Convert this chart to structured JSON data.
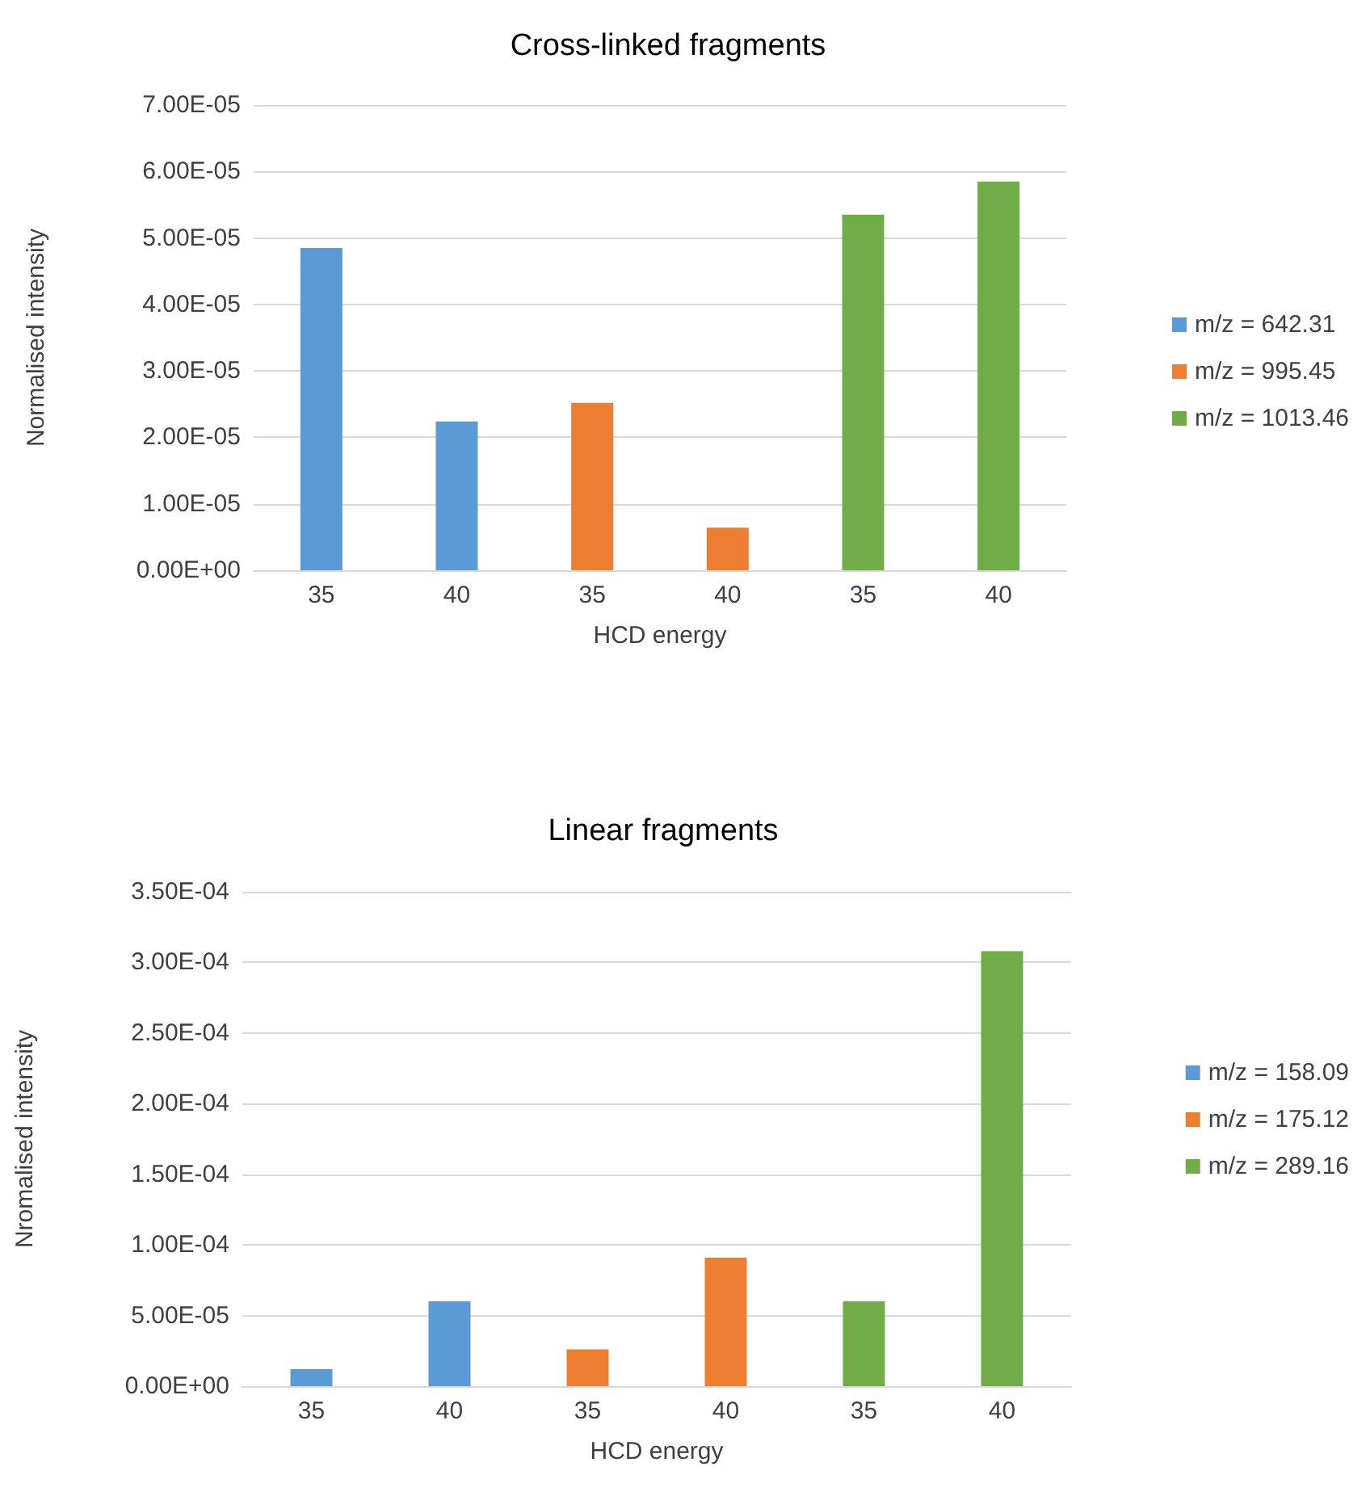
{
  "chart_data": [
    {
      "type": "bar",
      "title": "Cross-linked fragments",
      "xlabel": "HCD energy",
      "ylabel": "Normalised intensity",
      "categories": [
        "35",
        "40",
        "35",
        "40",
        "35",
        "40"
      ],
      "series": [
        {
          "name": "m/z = 642.31",
          "color": "#5b9bd5",
          "values": [
            4.85e-05,
            2.24e-05,
            null,
            null,
            null,
            null
          ]
        },
        {
          "name": "m/z = 995.45",
          "color": "#ed7d31",
          "values": [
            null,
            null,
            2.52e-05,
            6.4e-06,
            null,
            null
          ]
        },
        {
          "name": "m/z = 1013.46",
          "color": "#70ad47",
          "values": [
            null,
            null,
            null,
            null,
            5.35e-05,
            5.85e-05
          ]
        }
      ],
      "ylim": [
        0,
        7e-05
      ],
      "yticks": [
        {
          "value": 0,
          "label": "0.00E+00"
        },
        {
          "value": 1e-05,
          "label": "1.00E-05"
        },
        {
          "value": 2e-05,
          "label": "2.00E-05"
        },
        {
          "value": 3e-05,
          "label": "3.00E-05"
        },
        {
          "value": 4e-05,
          "label": "4.00E-05"
        },
        {
          "value": 5e-05,
          "label": "5.00E-05"
        },
        {
          "value": 6e-05,
          "label": "6.00E-05"
        },
        {
          "value": 7e-05,
          "label": "7.00E-05"
        }
      ],
      "grid": "y",
      "legend": "right"
    },
    {
      "type": "bar",
      "title": "Linear fragments",
      "xlabel": "HCD energy",
      "ylabel": "Nromalised intensity",
      "categories": [
        "35",
        "40",
        "35",
        "40",
        "35",
        "40"
      ],
      "series": [
        {
          "name": "m/z = 158.09",
          "color": "#5b9bd5",
          "values": [
            1.2e-05,
            6e-05,
            null,
            null,
            null,
            null
          ]
        },
        {
          "name": "m/z = 175.12",
          "color": "#ed7d31",
          "values": [
            null,
            null,
            2.6e-05,
            9.1e-05,
            null,
            null
          ]
        },
        {
          "name": "m/z = 289.16",
          "color": "#70ad47",
          "values": [
            null,
            null,
            null,
            null,
            6e-05,
            0.000308
          ]
        }
      ],
      "ylim": [
        0,
        0.00035
      ],
      "yticks": [
        {
          "value": 0,
          "label": "0.00E+00"
        },
        {
          "value": 5e-05,
          "label": "5.00E-05"
        },
        {
          "value": 0.0001,
          "label": "1.00E-04"
        },
        {
          "value": 0.00015,
          "label": "1.50E-04"
        },
        {
          "value": 0.0002,
          "label": "2.00E-04"
        },
        {
          "value": 0.00025,
          "label": "2.50E-04"
        },
        {
          "value": 0.0003,
          "label": "3.00E-04"
        },
        {
          "value": 0.00035,
          "label": "3.50E-04"
        }
      ],
      "grid": "y",
      "legend": "right"
    }
  ]
}
